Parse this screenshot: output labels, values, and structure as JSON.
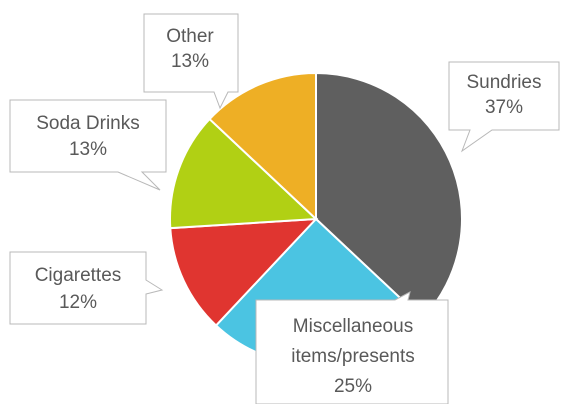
{
  "chart_data": {
    "type": "pie",
    "title": "",
    "start_angle_deg": 0,
    "direction": "clockwise",
    "slices": [
      {
        "label": "Sundries",
        "value": 37,
        "value_label": "37%",
        "color": "#5f5f5f"
      },
      {
        "label": "Miscellaneous items/presents",
        "label_lines": [
          "Miscellaneous",
          "items/presents"
        ],
        "value": 25,
        "value_label": "25%",
        "color": "#4bc4e2"
      },
      {
        "label": "Cigarettes",
        "value": 12,
        "value_label": "12%",
        "color": "#e03530"
      },
      {
        "label": "Soda Drinks",
        "value": 13,
        "value_label": "13%",
        "color": "#b1d014"
      },
      {
        "label": "Other",
        "value": 13,
        "value_label": "13%",
        "color": "#eeaf25"
      }
    ]
  }
}
